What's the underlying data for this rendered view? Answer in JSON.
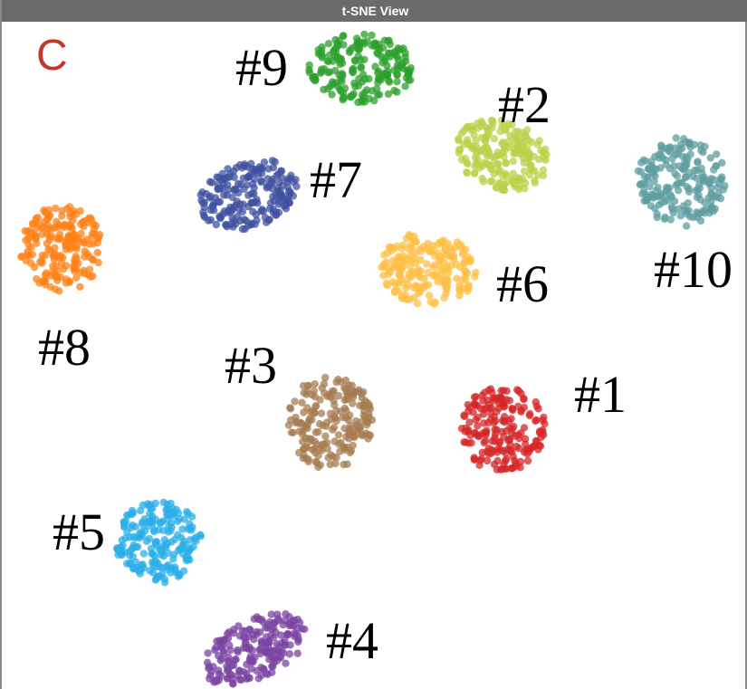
{
  "window": {
    "title": "t-SNE View"
  },
  "panel": {
    "label": "C",
    "label_color": "#c0392b"
  },
  "chart_data": {
    "type": "scatter",
    "title": "",
    "xlabel": "",
    "ylabel": "",
    "grid": false,
    "legend": "none",
    "clusters": [
      {
        "label": "#1",
        "color": "#d62728",
        "cx": 0.67,
        "cy": 0.61,
        "count": 200
      },
      {
        "label": "#2",
        "color": "#bcd04a",
        "cx": 0.67,
        "cy": 0.2,
        "count": 200
      },
      {
        "label": "#3",
        "color": "#a67c52",
        "cx": 0.44,
        "cy": 0.6,
        "count": 200
      },
      {
        "label": "#4",
        "color": "#7b44a3",
        "cx": 0.34,
        "cy": 0.94,
        "count": 200
      },
      {
        "label": "#5",
        "color": "#2baee8",
        "cx": 0.21,
        "cy": 0.78,
        "count": 200
      },
      {
        "label": "#6",
        "color": "#fdbf45",
        "cx": 0.57,
        "cy": 0.37,
        "count": 200
      },
      {
        "label": "#7",
        "color": "#3f51a0",
        "cx": 0.33,
        "cy": 0.26,
        "count": 200
      },
      {
        "label": "#8",
        "color": "#ff8218",
        "cx": 0.08,
        "cy": 0.34,
        "count": 200
      },
      {
        "label": "#9",
        "color": "#2ca02c",
        "cx": 0.48,
        "cy": 0.07,
        "count": 200
      },
      {
        "label": "#10",
        "color": "#5f9ea0",
        "cx": 0.91,
        "cy": 0.24,
        "count": 200
      }
    ]
  }
}
